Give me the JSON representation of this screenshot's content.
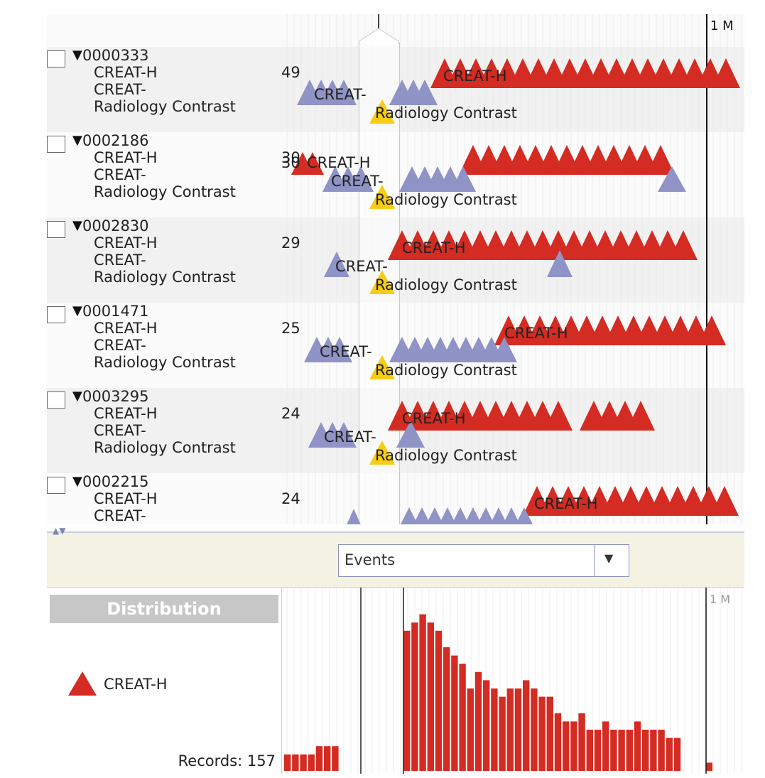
{
  "colors": {
    "creat_h": "#d42b22",
    "creat_minus": "#8f93c6",
    "contrast": "#f6cc16",
    "row_even": "#f1f1f1",
    "row_odd": "#fbfbfb"
  },
  "timeline": {
    "month_label": "1 M",
    "records": [
      {
        "id": "0000333",
        "labels": [
          "CREAT-H",
          "CREAT-",
          "Radiology Contrast"
        ],
        "count": "49"
      },
      {
        "id": "0002186",
        "labels": [
          "CREAT-H",
          "CREAT-",
          "Radiology Contrast"
        ],
        "count": "30"
      },
      {
        "id": "0002830",
        "labels": [
          "CREAT-H",
          "CREAT-",
          "Radiology Contrast"
        ],
        "count": "29"
      },
      {
        "id": "0001471",
        "labels": [
          "CREAT-H",
          "CREAT-",
          "Radiology Contrast"
        ],
        "count": "25"
      },
      {
        "id": "0003295",
        "labels": [
          "CREAT-H",
          "CREAT-",
          "Radiology Contrast"
        ],
        "count": "24"
      },
      {
        "id": "0002215",
        "labels": [
          "CREAT-H",
          "CREAT-"
        ],
        "count": "24"
      }
    ],
    "event_labels": {
      "creat_h": "CREAT-H",
      "creat_minus": "CREAT-",
      "contrast": "Radiology Contrast"
    }
  },
  "selector": {
    "value": "Events",
    "arrow_icon": "chevron-down-icon"
  },
  "distribution": {
    "title": "Distribution",
    "legend_label": "CREAT-H",
    "records_label": "Records: 157",
    "month_label": "1 M"
  },
  "chart_data": {
    "type": "bar",
    "title": "Distribution",
    "series": [
      {
        "name": "CREAT-H",
        "values": [
          2,
          2,
          2,
          2,
          3,
          3,
          3,
          0,
          0,
          0,
          0,
          0,
          0,
          0,
          0,
          17,
          18,
          19,
          18,
          17,
          15,
          14,
          13,
          10,
          12,
          11,
          10,
          9,
          10,
          10,
          11,
          10,
          9,
          9,
          7,
          6,
          6,
          7,
          5,
          5,
          6,
          5,
          5,
          5,
          6,
          5,
          5,
          5,
          4,
          4,
          0,
          0,
          0,
          1,
          0
        ]
      }
    ],
    "ylim": [
      0,
      20
    ],
    "grid": true,
    "legend": "left"
  }
}
